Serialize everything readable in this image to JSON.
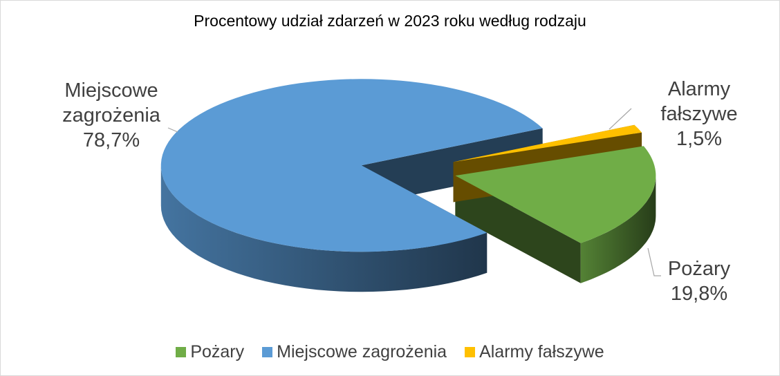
{
  "chart_data": {
    "type": "pie",
    "title": "Procentowy udział zdarzeń w 2023 roku według rodzaju",
    "categories": [
      "Pożary",
      "Miejscowe zagrożenia",
      "Alarmy fałszywe"
    ],
    "values": [
      19.8,
      78.7,
      1.5
    ],
    "value_labels": [
      "19,8%",
      "78,7%",
      "1,5%"
    ],
    "colors": [
      "#70ad47",
      "#5b9bd5",
      "#ffc000"
    ],
    "legend": "bottom"
  }
}
